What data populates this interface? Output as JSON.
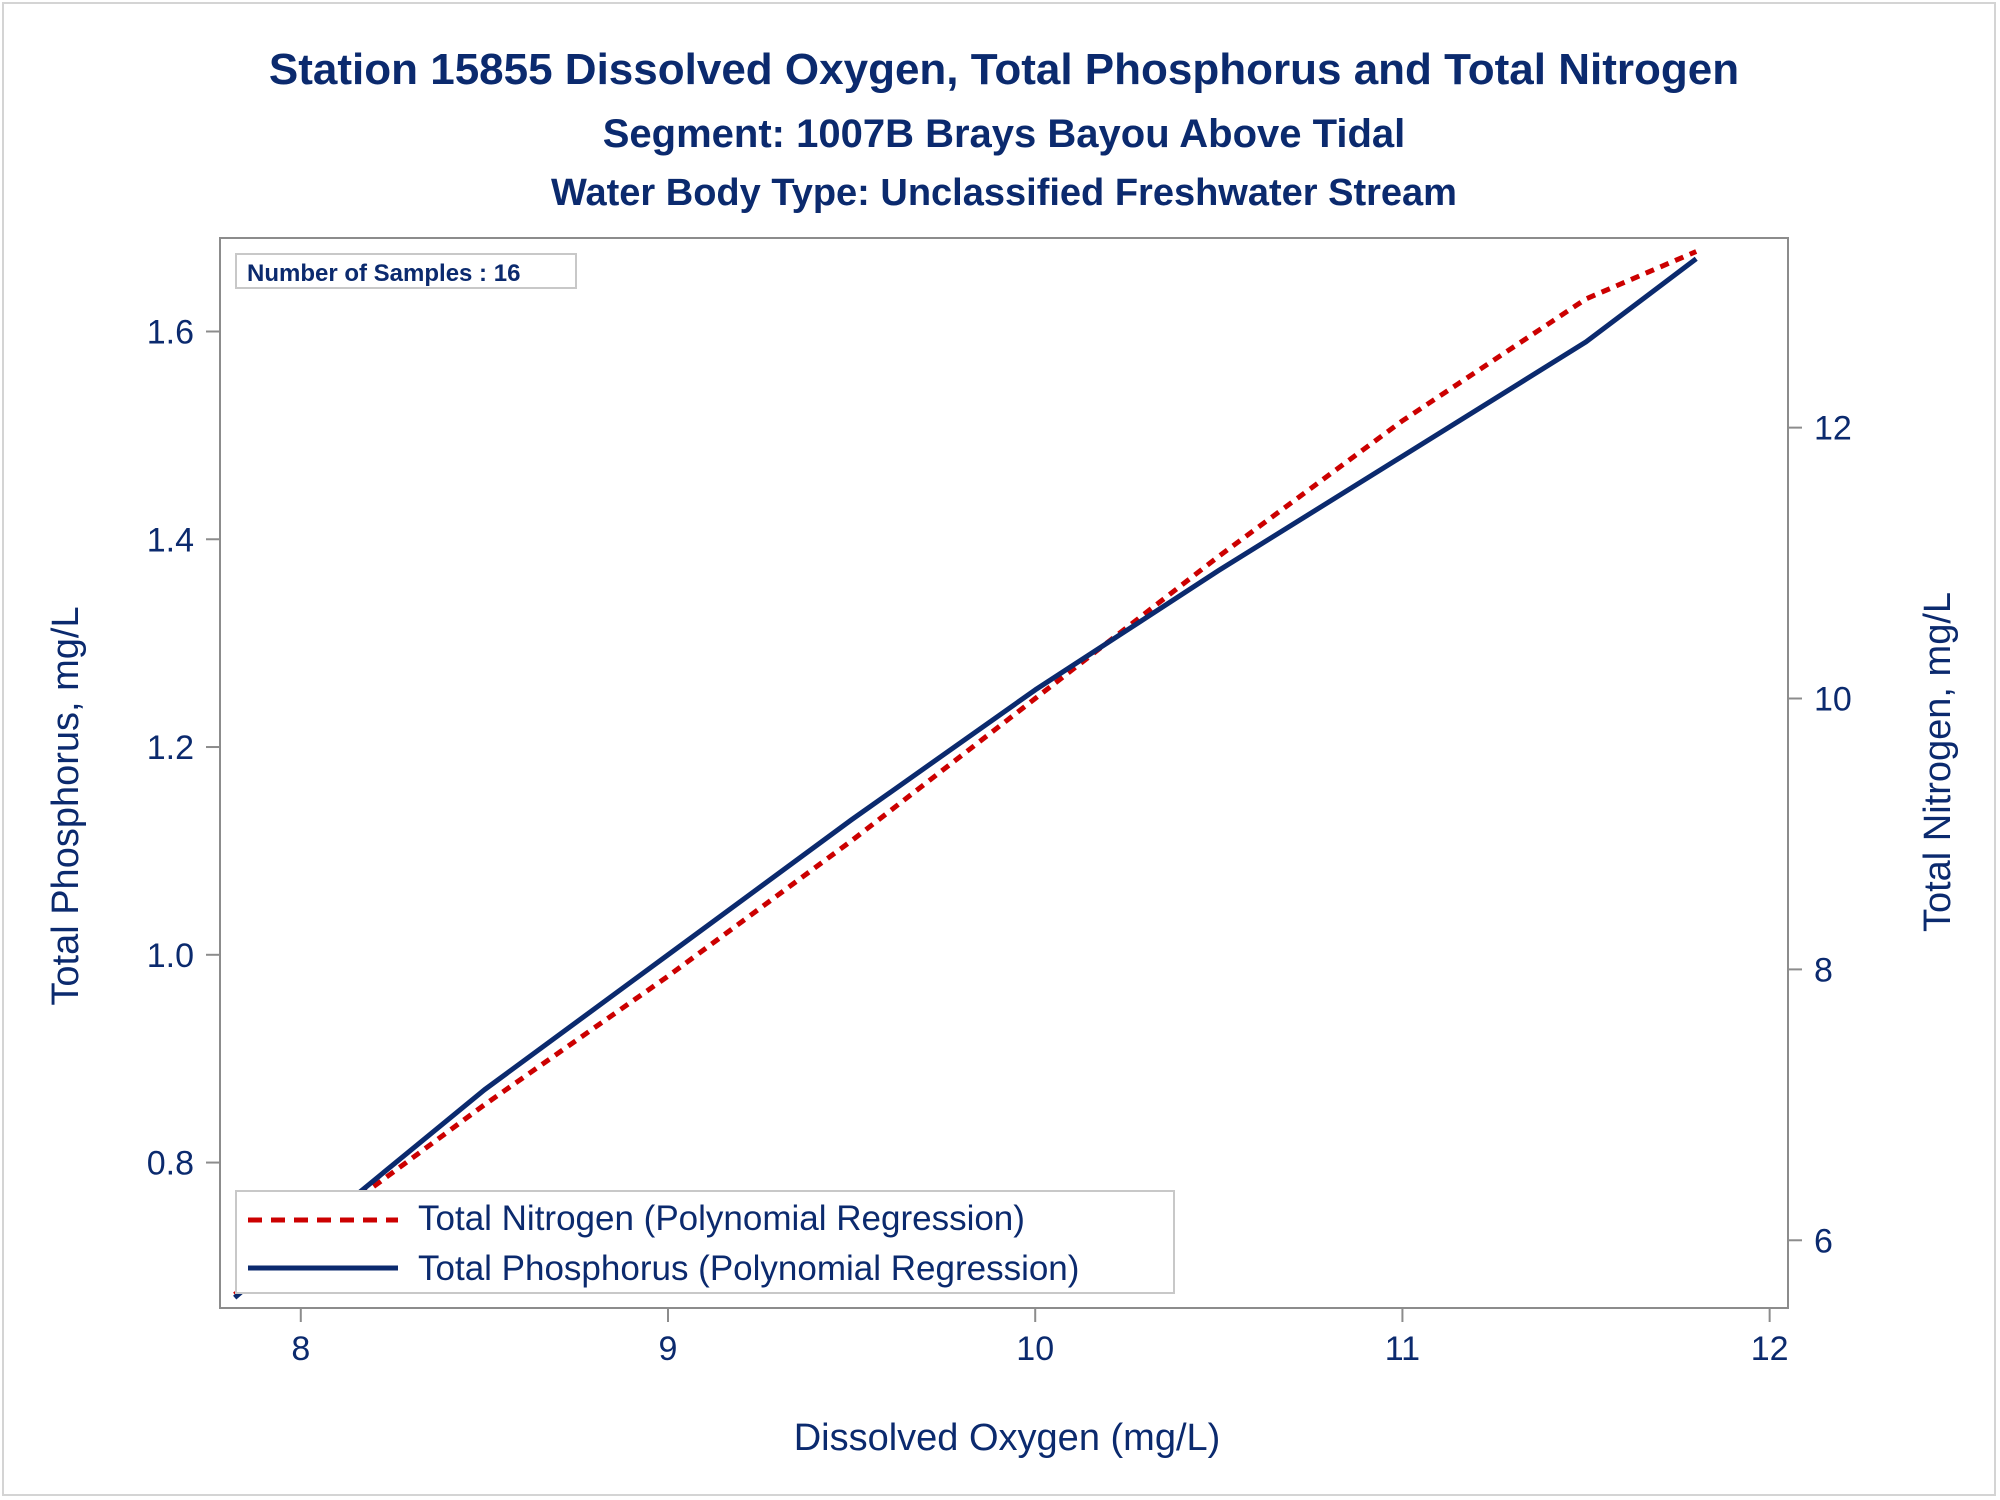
{
  "colors": {
    "text": "#0b2a6e",
    "frame": "#8c8c8c",
    "nitrogen": "#cc0000",
    "phosphorus": "#0b2a6e"
  },
  "chart_data": {
    "type": "line",
    "title": "Station 15855  Dissolved Oxygen, Total Phosphorus and Total Nitrogen",
    "subtitle": "Segment: 1007B  Brays Bayou Above Tidal",
    "subtitle2": "Water Body Type: Unclassified Freshwater Stream",
    "annotation": "Number of Samples : 16",
    "xlabel": "Dissolved Oxygen (mg/L)",
    "ylabel": "Total Phosphorus, mg/L",
    "y2label": "Total Nitrogen, mg/L",
    "xlim": [
      7.78,
      12.05
    ],
    "ylim": [
      0.66,
      1.69
    ],
    "y2lim": [
      5.5,
      13.4
    ],
    "xticks": [
      8,
      9,
      10,
      11,
      12
    ],
    "xtick_labels": [
      "8",
      "9",
      "10",
      "11",
      "12"
    ],
    "yticks": [
      0.8,
      1.0,
      1.2,
      1.4,
      1.6
    ],
    "ytick_labels": [
      "0.8",
      "1.0",
      "1.2",
      "1.4",
      "1.6"
    ],
    "y2ticks": [
      6,
      8,
      10,
      12
    ],
    "y2tick_labels": [
      "6",
      "8",
      "10",
      "12"
    ],
    "grid": false,
    "legend_position": "bottom-left",
    "series": [
      {
        "name": "Total Nitrogen (Polynomial Regression)",
        "axis": "right",
        "style": "dashed",
        "x": [
          7.82,
          8.0,
          8.5,
          9.0,
          9.5,
          10.0,
          10.5,
          11.0,
          11.5,
          11.8
        ],
        "y": [
          5.6,
          6.0,
          7.0,
          7.95,
          8.95,
          10.0,
          11.05,
          12.05,
          12.95,
          13.3
        ]
      },
      {
        "name": "Total Phosphorus (Polynomial Regression)",
        "axis": "left",
        "style": "solid",
        "x": [
          7.82,
          8.0,
          8.5,
          9.0,
          9.5,
          10.0,
          10.5,
          11.0,
          11.5,
          11.8
        ],
        "y": [
          0.67,
          0.725,
          0.87,
          1.0,
          1.13,
          1.255,
          1.37,
          1.48,
          1.59,
          1.67
        ]
      }
    ]
  }
}
